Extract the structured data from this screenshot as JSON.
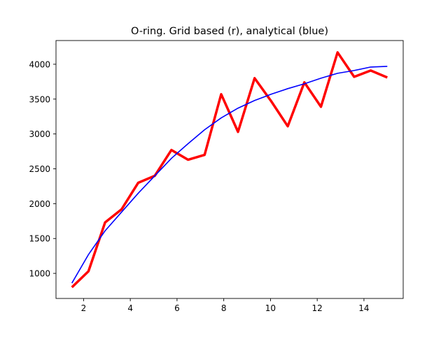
{
  "chart_data": {
    "type": "line",
    "title": "O-ring. Grid based (r), analytical (blue)",
    "xlabel": "",
    "ylabel": "",
    "xlim": [
      0.82,
      15.68
    ],
    "ylim": [
      640,
      4340
    ],
    "xticks": [
      2,
      4,
      6,
      8,
      10,
      12,
      14
    ],
    "yticks": [
      1000,
      1500,
      2000,
      2500,
      3000,
      3500,
      4000
    ],
    "grid": false,
    "legend": "none",
    "series": [
      {
        "color": "#ff0000",
        "line_width": "thick",
        "x": [
          1.5,
          2.21,
          2.92,
          3.63,
          4.34,
          5.05,
          5.76,
          6.47,
          7.18,
          7.89,
          8.61,
          9.32,
          10.03,
          10.74,
          11.45,
          12.16,
          12.87,
          13.58,
          14.29,
          15.0
        ],
        "y": [
          800,
          1030,
          1730,
          1920,
          2300,
          2400,
          2770,
          2630,
          2700,
          3570,
          3030,
          3800,
          3470,
          3110,
          3740,
          3390,
          4170,
          3820,
          3910,
          3810
        ]
      },
      {
        "color": "#0000ff",
        "line_width": "thin",
        "x": [
          1.5,
          2.21,
          2.92,
          3.63,
          4.34,
          5.05,
          5.76,
          6.47,
          7.18,
          7.89,
          8.61,
          9.32,
          10.03,
          10.74,
          11.45,
          12.16,
          12.87,
          13.58,
          14.29,
          15.0
        ],
        "y": [
          860,
          1270,
          1610,
          1880,
          2150,
          2400,
          2650,
          2860,
          3060,
          3230,
          3370,
          3480,
          3570,
          3650,
          3720,
          3800,
          3870,
          3910,
          3960,
          3970
        ]
      }
    ]
  }
}
